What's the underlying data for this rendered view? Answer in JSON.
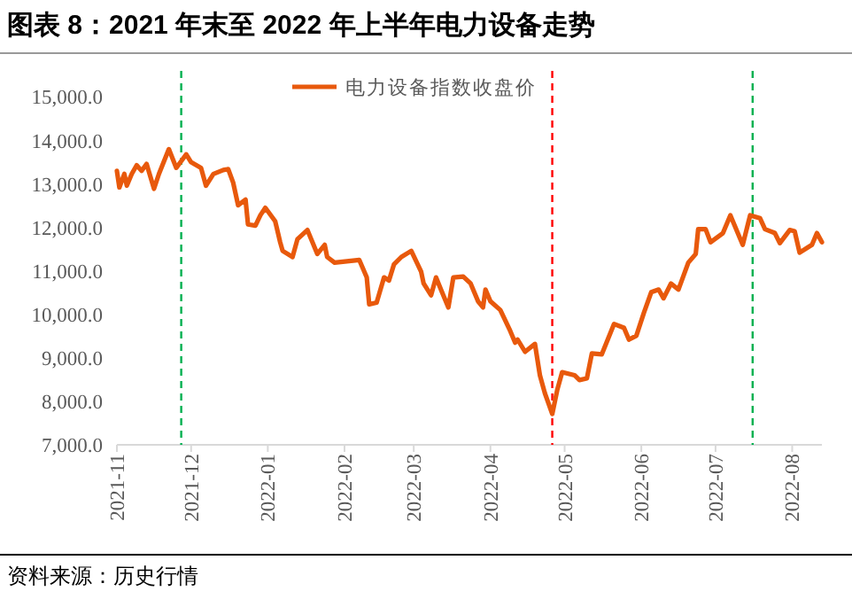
{
  "chart_data": {
    "type": "line",
    "title": "图表 8：2021 年末至 2022 年上半年电力设备走势",
    "annotations": [
      "资料来源：历史行情"
    ],
    "legend": "top",
    "grid": false,
    "marker": "none",
    "line_style": "solid",
    "xlim": [
      "2021-11-01",
      "2022-08-13"
    ],
    "xticks": [
      "2021-11",
      "2021-12",
      "2022-01",
      "2022-02",
      "2022-03",
      "2022-04",
      "2022-05",
      "2022-06",
      "2022-07",
      "2022-08"
    ],
    "ylim": [
      7000,
      15600
    ],
    "yticks": [
      {
        "value": 7000,
        "label": "7,000.0"
      },
      {
        "value": 8000,
        "label": "8,000.0"
      },
      {
        "value": 9000,
        "label": "9,000.0"
      },
      {
        "value": 10000,
        "label": "10,000.0"
      },
      {
        "value": 11000,
        "label": "11,000.0"
      },
      {
        "value": 12000,
        "label": "12,000.0"
      },
      {
        "value": 13000,
        "label": "13,000.0"
      },
      {
        "value": 14000,
        "label": "14,000.0"
      },
      {
        "value": 15000,
        "label": "15,000.0"
      }
    ],
    "ref_lines": [
      {
        "axis": "x",
        "value": "2021-11-27",
        "color": "#00b050",
        "line_style": "dashed"
      },
      {
        "axis": "x",
        "value": "2022-04-26",
        "color": "#ff0000",
        "line_style": "dashed"
      },
      {
        "axis": "x",
        "value": "2022-07-16",
        "color": "#00b050",
        "line_style": "dashed"
      }
    ],
    "series": [
      {
        "name": "电力设备指数收盘价",
        "color": "#e8590c",
        "x": [
          "2021-11-01",
          "2021-11-02",
          "2021-11-04",
          "2021-11-05",
          "2021-11-07",
          "2021-11-09",
          "2021-11-11",
          "2021-11-13",
          "2021-11-16",
          "2021-11-18",
          "2021-11-22",
          "2021-11-25",
          "2021-11-29",
          "2021-12-01",
          "2021-12-05",
          "2021-12-07",
          "2021-12-10",
          "2021-12-14",
          "2021-12-16",
          "2021-12-18",
          "2021-12-20",
          "2021-12-23",
          "2021-12-24",
          "2021-12-27",
          "2021-12-29",
          "2021-12-31",
          "2022-01-04",
          "2022-01-06",
          "2022-01-07",
          "2022-01-11",
          "2022-01-13",
          "2022-01-17",
          "2022-01-21",
          "2022-01-24",
          "2022-01-25",
          "2022-01-28",
          "2022-02-07",
          "2022-02-10",
          "2022-02-11",
          "2022-02-14",
          "2022-02-17",
          "2022-02-19",
          "2022-02-21",
          "2022-02-24",
          "2022-02-28",
          "2022-03-04",
          "2022-03-05",
          "2022-03-08",
          "2022-03-10",
          "2022-03-12",
          "2022-03-15",
          "2022-03-17",
          "2022-03-21",
          "2022-03-24",
          "2022-03-27",
          "2022-03-29",
          "2022-03-30",
          "2022-04-01",
          "2022-04-05",
          "2022-04-09",
          "2022-04-11",
          "2022-04-12",
          "2022-04-15",
          "2022-04-19",
          "2022-04-21",
          "2022-04-23",
          "2022-04-26",
          "2022-04-28",
          "2022-04-30",
          "2022-05-05",
          "2022-05-07",
          "2022-05-10",
          "2022-05-12",
          "2022-05-16",
          "2022-05-21",
          "2022-05-25",
          "2022-05-27",
          "2022-05-30",
          "2022-06-02",
          "2022-06-05",
          "2022-06-08",
          "2022-06-10",
          "2022-06-13",
          "2022-06-16",
          "2022-06-20",
          "2022-06-23",
          "2022-06-24",
          "2022-06-27",
          "2022-06-29",
          "2022-07-04",
          "2022-07-07",
          "2022-07-10",
          "2022-07-12",
          "2022-07-15",
          "2022-07-19",
          "2022-07-21",
          "2022-07-25",
          "2022-07-27",
          "2022-07-31",
          "2022-08-02",
          "2022-08-04",
          "2022-08-07",
          "2022-08-09",
          "2022-08-11",
          "2022-08-13"
        ],
        "values": [
          13300,
          12920,
          13230,
          12960,
          13230,
          13430,
          13300,
          13460,
          12890,
          13230,
          13800,
          13370,
          13680,
          13500,
          13370,
          12960,
          13230,
          13320,
          13340,
          13030,
          12510,
          12640,
          12070,
          12040,
          12280,
          12450,
          12140,
          11660,
          11460,
          11320,
          11730,
          11940,
          11390,
          11600,
          11320,
          11190,
          11250,
          10850,
          10230,
          10270,
          10850,
          10780,
          11150,
          11320,
          11460,
          10980,
          10710,
          10440,
          10850,
          10570,
          10160,
          10850,
          10870,
          10710,
          10300,
          10160,
          10570,
          10300,
          10100,
          9620,
          9350,
          9420,
          9140,
          9320,
          8600,
          8190,
          7710,
          8260,
          8670,
          8600,
          8490,
          8530,
          9100,
          9080,
          9780,
          9690,
          9420,
          9510,
          10030,
          10510,
          10570,
          10370,
          10710,
          10570,
          11190,
          11390,
          11960,
          11960,
          11660,
          11870,
          12280,
          11870,
          11600,
          12280,
          12210,
          11960,
          11870,
          11640,
          11940,
          11910,
          11420,
          11530,
          11600,
          11870,
          11660
        ]
      }
    ]
  }
}
